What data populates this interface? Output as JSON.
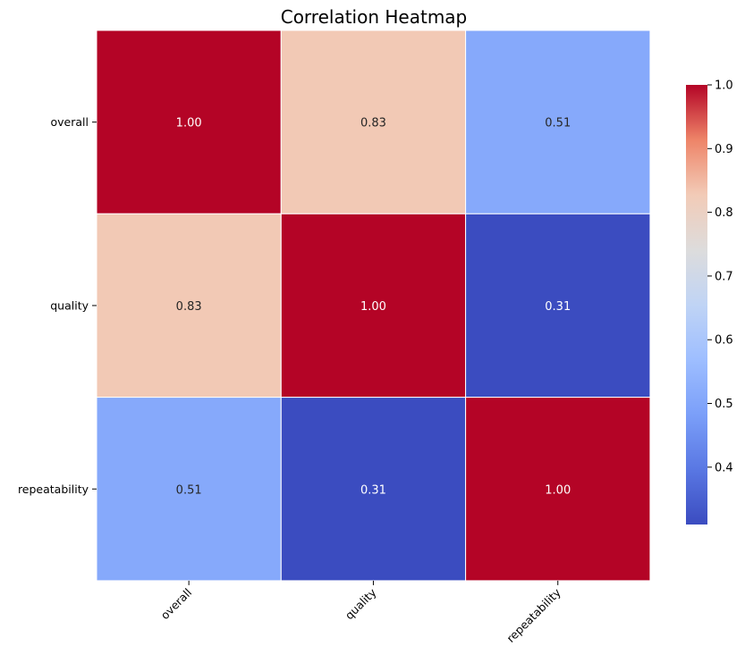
{
  "chart_data": {
    "type": "heatmap",
    "title": "Correlation Heatmap",
    "x_categories": [
      "overall",
      "quality",
      "repeatability"
    ],
    "y_categories": [
      "overall",
      "quality",
      "repeatability"
    ],
    "values": [
      [
        1.0,
        0.83,
        0.51
      ],
      [
        0.83,
        1.0,
        0.31
      ],
      [
        0.51,
        0.31,
        1.0
      ]
    ],
    "value_labels": [
      [
        "1.00",
        "0.83",
        "0.51"
      ],
      [
        "0.83",
        "1.00",
        "0.31"
      ],
      [
        "0.51",
        "0.31",
        "1.00"
      ]
    ],
    "colormap": "coolwarm",
    "vmin": 0.31,
    "vmax": 1.0,
    "colorbar_ticks": [
      "0.4",
      "0.5",
      "0.6",
      "0.7",
      "0.8",
      "0.9",
      "1.0"
    ],
    "colorbar_tick_values": [
      0.4,
      0.5,
      0.6,
      0.7,
      0.8,
      0.9,
      1.0
    ],
    "grid_line_color": "#ffffff",
    "x_tick_rotation": "45 degrees"
  }
}
